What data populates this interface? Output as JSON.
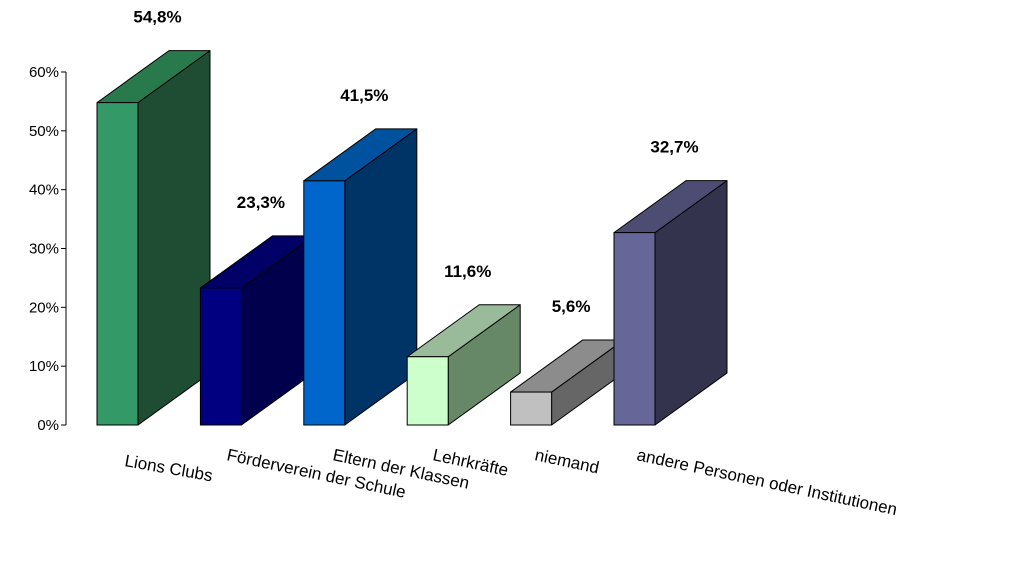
{
  "chart_data": {
    "type": "bar",
    "title": "",
    "xlabel": "",
    "ylabel": "",
    "ylim": [
      0,
      60
    ],
    "yticks": [
      "0%",
      "10%",
      "20%",
      "30%",
      "40%",
      "50%",
      "60%"
    ],
    "grid": false,
    "legend": "none",
    "categories": [
      "Lions Clubs",
      "Förderverein der Schule",
      "Eltern der Klassen",
      "Lehrkräfte",
      "niemand",
      "andere Personen oder Institutionen"
    ],
    "values": [
      54.8,
      23.3,
      41.5,
      11.6,
      5.6,
      32.7
    ],
    "value_labels": [
      "54,8%",
      "23,3%",
      "41,5%",
      "11,6%",
      "5,6%",
      "32,7%"
    ],
    "colors": [
      {
        "front": "#339966",
        "side": "#1f4d33",
        "top": "#287a4d"
      },
      {
        "front": "#000080",
        "side": "#00004d",
        "top": "#000066"
      },
      {
        "front": "#0066cc",
        "side": "#003366",
        "top": "#00529e"
      },
      {
        "front": "#ccffcc",
        "side": "#668866",
        "top": "#99bb99"
      },
      {
        "front": "#c0c0c0",
        "side": "#666666",
        "top": "#8c8c8c"
      },
      {
        "front": "#666699",
        "side": "#33334d",
        "top": "#4d4d73"
      }
    ]
  }
}
